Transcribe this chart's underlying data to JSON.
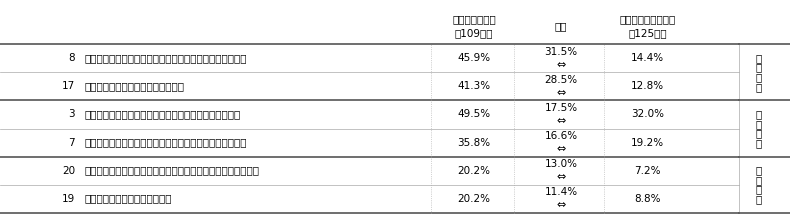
{
  "rows": [
    {
      "num": "8",
      "label": "人事や現場で、社内公募制度を運用する人的な余裕がない",
      "val1": "45.9%",
      "diff_pct": "31.5%",
      "val2": "14.4%",
      "category": "人\n材\nの\n壁",
      "cat_show": true
    },
    {
      "num": "17",
      "label": "運用等に関するノウハウが足りない",
      "val1": "41.3%",
      "diff_pct": "28.5%",
      "val2": "12.8%",
      "category": "",
      "cat_show": false
    },
    {
      "num": "3",
      "label": "制度活用を後押しするキャリア相談の仕組みなどがない",
      "val1": "49.5%",
      "diff_pct": "17.5%",
      "val2": "32.0%",
      "category": "意\n識\nの\n壁",
      "cat_show": true
    },
    {
      "num": "7",
      "label": "現場の上司が優秀な従業員を抱え込み、異動が実現しない",
      "val1": "35.8%",
      "diff_pct": "16.6%",
      "val2": "19.2%",
      "category": "",
      "cat_show": false
    },
    {
      "num": "20",
      "label": "社外からの中途採用でないと要件に合致する人を採用できない",
      "val1": "20.2%",
      "diff_pct": "13.0%",
      "val2": "7.2%",
      "category": "配\n置\nの\n壁",
      "cat_show": true
    },
    {
      "num": "19",
      "label": "異動前後の処遇の調整が難しい",
      "val1": "20.2%",
      "diff_pct": "11.4%",
      "val2": "8.8%",
      "category": "",
      "cat_show": false
    }
  ],
  "header_col2": "導入しない理由\n（109社）",
  "header_col3": "差分",
  "header_col4": "導入企業の課題認識\n（125社）",
  "bg_color": "#ffffff",
  "text_color": "#000000",
  "line_color_thin": "#aaaaaa",
  "line_color_thick": "#555555",
  "line_color_dot": "#aaaaaa",
  "font_size": 7.5,
  "font_size_header": 7.5,
  "font_size_diff": 7.5,
  "group_separator_after": [
    1,
    3
  ],
  "figwidth": 7.9,
  "figheight": 2.17,
  "dpi": 100
}
